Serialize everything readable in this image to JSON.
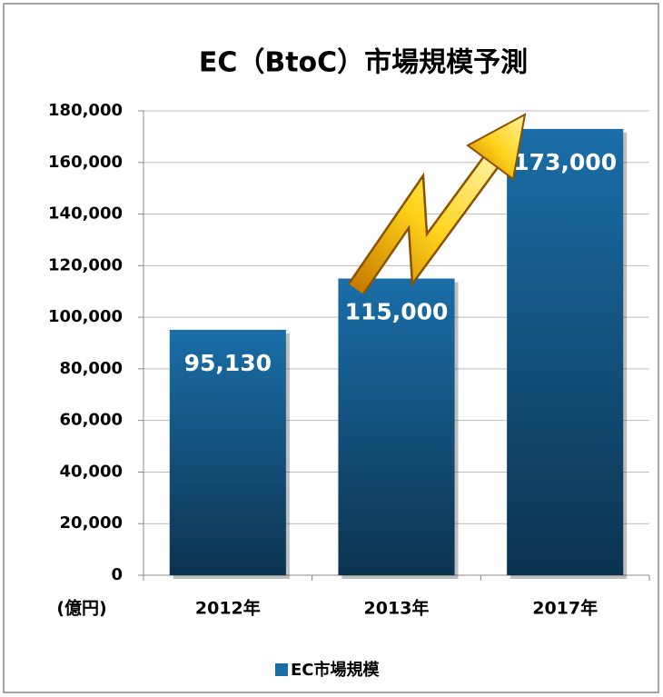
{
  "chart_data": {
    "type": "bar",
    "title": "EC（BtoC）市場規模予測",
    "unit_label": "(億円)",
    "categories": [
      "2012年",
      "2013年",
      "2017年"
    ],
    "series": [
      {
        "name": "EC市場規模",
        "color": "#1a6ea8",
        "values": [
          95130,
          115000,
          173000
        ],
        "value_labels": [
          "95,130",
          "115,000",
          "173,000"
        ]
      }
    ],
    "ylim": [
      0,
      180000
    ],
    "yticks": [
      0,
      {
        "value": 20000,
        "label": "20,000"
      },
      {
        "value": 40000,
        "label": "40,000"
      },
      {
        "value": 60000,
        "label": "60,000"
      },
      {
        "value": 80000,
        "label": "80,000"
      },
      {
        "value": 100000,
        "label": "100,000"
      },
      {
        "value": 120000,
        "label": "120,000"
      },
      {
        "value": 140000,
        "label": "140,000"
      },
      {
        "value": 160000,
        "label": "160,000"
      },
      {
        "value": 180000,
        "label": "180,000"
      }
    ],
    "grid": true
  }
}
